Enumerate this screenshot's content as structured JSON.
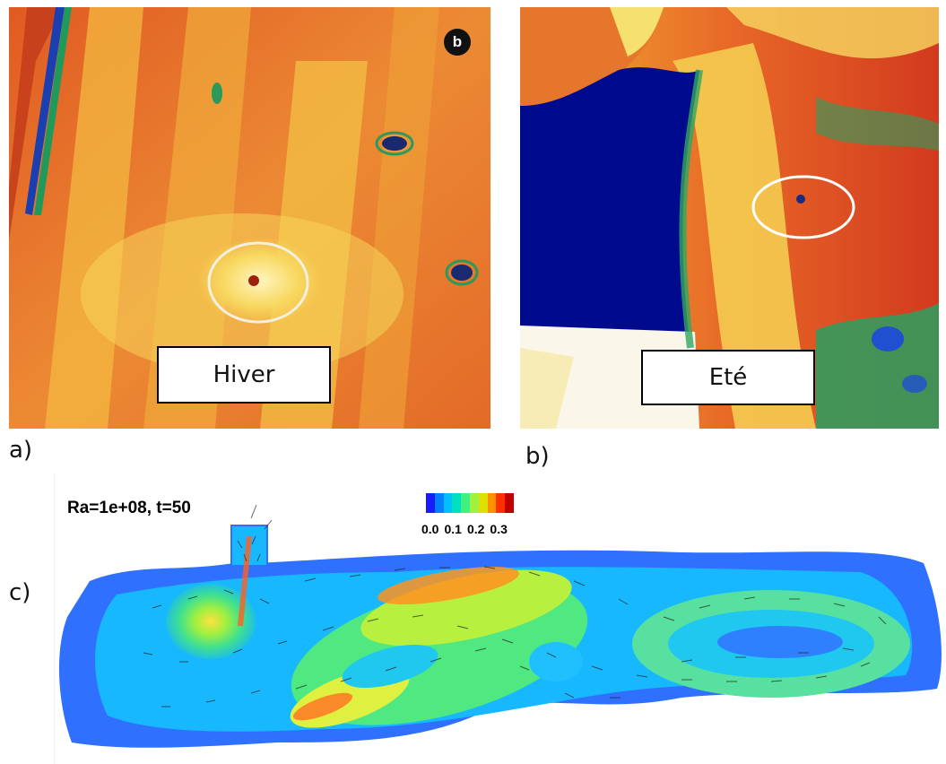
{
  "panel_a": {
    "label": "Hiver",
    "corner_badge": "b",
    "sublabel": "a)"
  },
  "panel_b": {
    "label": "Eté",
    "sublabel": "b)"
  },
  "panel_c": {
    "sublabel": "c)",
    "title": "Ra=1e+08, t=50",
    "colorbar": {
      "ticks": [
        "0.0",
        "0.1",
        "0.2",
        "0.3"
      ],
      "colors": [
        "#1a1aff",
        "#0080ff",
        "#00c0ff",
        "#00e0c0",
        "#40f080",
        "#a0f040",
        "#e0e000",
        "#ff9000",
        "#ff3000",
        "#c00000"
      ]
    }
  },
  "colors": {
    "thermal_orange": "#e8702a",
    "thermal_yellow": "#f4c430",
    "thermal_red": "#d23a1e",
    "water_navy": "#000a8c",
    "flow_blue": "#2f7fff",
    "flow_green": "#6ee06e"
  }
}
